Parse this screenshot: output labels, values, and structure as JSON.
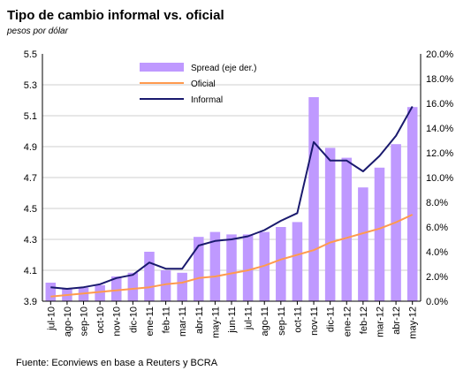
{
  "chart_data": {
    "type": "bar+line",
    "title": "Tipo de cambio informal vs. oficial",
    "subtitle": "pesos por dólar",
    "source": "Fuente: Econviews en base a Reuters y BCRA",
    "categories": [
      "jul-10",
      "ago-10",
      "sep-10",
      "oct-10",
      "nov-10",
      "dic-10",
      "ene-11",
      "feb-11",
      "mar-11",
      "abr-11",
      "may-11",
      "jun-11",
      "jul-11",
      "ago-11",
      "sep-11",
      "oct-11",
      "nov-11",
      "dic-11",
      "ene-12",
      "feb-12",
      "mar-12",
      "abr-12",
      "may-12"
    ],
    "left_axis": {
      "min": 3.9,
      "max": 5.5,
      "ticks": [
        "3.9",
        "4.1",
        "4.3",
        "4.5",
        "4.7",
        "4.9",
        "5.1",
        "5.3",
        "5.5"
      ]
    },
    "right_axis": {
      "min": 0,
      "max": 20,
      "ticks": [
        "0.0%",
        "2.0%",
        "4.0%",
        "6.0%",
        "8.0%",
        "10.0%",
        "12.0%",
        "14.0%",
        "16.0%",
        "18.0%",
        "20.0%"
      ]
    },
    "legend": {
      "position": "top-left",
      "spread_label": "Spread (eje der.)",
      "oficial_label": "Oficial",
      "informal_label": "Informal"
    },
    "colors": {
      "spread": "#bf99ff",
      "oficial": "#ff9a4f",
      "informal": "#1a1a6e",
      "grid": "#cfcfcf"
    },
    "series": [
      {
        "name": "Oficial",
        "axis": "left",
        "values": [
          3.93,
          3.94,
          3.95,
          3.96,
          3.97,
          3.98,
          3.99,
          4.01,
          4.02,
          4.05,
          4.06,
          4.08,
          4.1,
          4.13,
          4.17,
          4.2,
          4.23,
          4.28,
          4.31,
          4.34,
          4.37,
          4.41,
          4.46
        ]
      },
      {
        "name": "Informal",
        "axis": "left",
        "values": [
          3.99,
          3.98,
          3.99,
          4.01,
          4.05,
          4.07,
          4.15,
          4.11,
          4.11,
          4.26,
          4.29,
          4.3,
          4.32,
          4.36,
          4.42,
          4.47,
          4.93,
          4.81,
          4.81,
          4.74,
          4.84,
          4.97,
          5.16
        ]
      },
      {
        "name": "Spread (eje der.)",
        "axis": "right",
        "values": [
          1.5,
          1.0,
          1.1,
          1.3,
          2.0,
          2.3,
          4.0,
          2.5,
          2.3,
          5.2,
          5.6,
          5.4,
          5.4,
          5.6,
          6.0,
          6.4,
          16.5,
          12.4,
          11.6,
          9.2,
          10.8,
          12.7,
          15.7
        ]
      }
    ]
  }
}
